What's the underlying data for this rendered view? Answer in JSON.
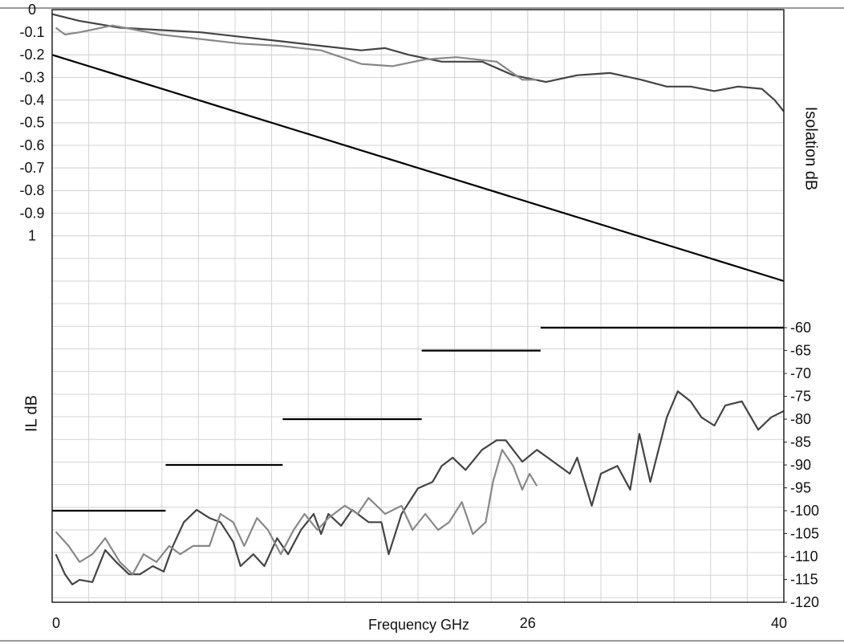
{
  "chart_data": {
    "type": "line",
    "x_label": "Frequency GHz",
    "y_label": "IL dB",
    "y2_label": "Isolation dB",
    "xlim": [
      0,
      40
    ],
    "xticks": [
      0,
      26,
      40
    ],
    "ylim": [
      -2.62,
      0
    ],
    "yticks": [
      0,
      -0.1,
      -0.2,
      -0.3,
      -0.4,
      -0.5,
      -0.6,
      -0.7,
      -0.8,
      -0.9,
      {
        "value": -1,
        "label": "1"
      }
    ],
    "y2lim": [
      -120,
      9.5
    ],
    "y2ticks": [
      -60,
      -65,
      -70,
      -75,
      -80,
      -85,
      -90,
      -95,
      -100,
      -105,
      -110,
      -115,
      -120
    ],
    "grid": true,
    "series": [
      {
        "color": "#000000",
        "x": [
          0,
          40
        ],
        "values": [
          -0.2,
          -1.2
        ]
      },
      {
        "color": "#444444",
        "x": [
          0,
          1.5,
          3.7,
          5.9,
          8.1,
          10.3,
          12.5,
          14.7,
          16.9,
          18.2,
          19.5,
          21.3,
          23.5,
          25.2,
          27,
          28.7,
          30.5,
          32.2,
          33.6,
          34.9,
          36.2,
          37.5,
          38.8,
          39.5,
          40
        ],
        "values": [
          -0.02,
          -0.05,
          -0.08,
          -0.09,
          -0.1,
          -0.12,
          -0.14,
          -0.16,
          -0.18,
          -0.17,
          -0.2,
          -0.23,
          -0.23,
          -0.29,
          -0.32,
          -0.29,
          -0.28,
          -0.31,
          -0.34,
          -0.34,
          -0.36,
          -0.34,
          -0.35,
          -0.4,
          -0.45
        ]
      },
      {
        "color": "#888888",
        "x": [
          0.2,
          0.7,
          1.5,
          3.3,
          5.9,
          8.1,
          10.3,
          12.5,
          14.7,
          16.9,
          18.6,
          20.4,
          22.1,
          24.3,
          25.7,
          26.5
        ],
        "values": [
          -0.08,
          -0.11,
          -0.1,
          -0.07,
          -0.11,
          -0.13,
          -0.15,
          -0.16,
          -0.18,
          -0.24,
          -0.25,
          -0.22,
          -0.21,
          -0.23,
          -0.31,
          -0.31
        ]
      },
      {
        "color": "#000000",
        "axis": "y2",
        "x": [
          0,
          6.2,
          6.2,
          6.2,
          12.6,
          12.6,
          12.6,
          20.2,
          20.2,
          20.2,
          26.7,
          26.7,
          26.7,
          40
        ],
        "values": [
          -100,
          -100,
          null,
          -90,
          -90,
          null,
          -80,
          -80,
          null,
          -65,
          -65,
          null,
          -60,
          -60
        ]
      },
      {
        "color": "#444444",
        "axis": "y2",
        "x": [
          0.2,
          0.7,
          1.1,
          1.5,
          2.2,
          2.9,
          3.5,
          4.2,
          4.8,
          5.5,
          6.1,
          6.6,
          7.2,
          7.9,
          8.6,
          9.2,
          9.9,
          10.3,
          11.0,
          11.6,
          12.3,
          12.9,
          13.6,
          14.3,
          14.7,
          15.1,
          15.8,
          16.4,
          17.3,
          18.0,
          18.4,
          19.1,
          20.0,
          20.8,
          21.3,
          21.9,
          22.6,
          23.5,
          24.3,
          24.8,
          25.7,
          26.5,
          27.4,
          28.3,
          28.7,
          29.5,
          30.0,
          30.9,
          31.6,
          32.1,
          32.7,
          33.6,
          34.2,
          34.9,
          35.5,
          36.2,
          36.8,
          37.7,
          38.6,
          39.3,
          40.0
        ],
        "values": [
          -109.5,
          -113.9,
          -116.1,
          -115.1,
          -115.6,
          -108.6,
          -111.2,
          -113.9,
          -113.9,
          -112.1,
          -113.3,
          -107.7,
          -102.5,
          -99.8,
          -101.6,
          -102.5,
          -106.8,
          -112.1,
          -109.5,
          -112.1,
          -106,
          -109.5,
          -104.2,
          -100.7,
          -105.1,
          -100.7,
          -103.3,
          -99.8,
          -102.5,
          -102.5,
          -109.5,
          -100.7,
          -95.1,
          -93.7,
          -90.2,
          -88.4,
          -91.1,
          -86.7,
          -84.6,
          -84.6,
          -89.3,
          -86.7,
          -89.3,
          -91.9,
          -88.4,
          -98.9,
          -91.9,
          -90.2,
          -95.4,
          -83.2,
          -93.7,
          -79.6,
          -73.9,
          -76.1,
          -79.6,
          -81.4,
          -77,
          -76.1,
          -82.3,
          -79.6,
          -78.2
        ]
      },
      {
        "color": "#888888",
        "axis": "y2",
        "x": [
          0.2,
          0.9,
          1.5,
          2.2,
          2.9,
          3.7,
          4.4,
          5.0,
          5.7,
          6.4,
          7.0,
          7.7,
          8.6,
          9.2,
          9.9,
          10.5,
          11.2,
          11.8,
          12.5,
          13.2,
          13.8,
          14.5,
          15.1,
          16.0,
          16.7,
          17.3,
          18.2,
          19.1,
          19.7,
          20.4,
          21.1,
          21.7,
          22.4,
          23.0,
          23.7,
          24.1,
          24.6,
          25.2,
          25.7,
          26.1,
          26.5
        ],
        "values": [
          -104.6,
          -107.7,
          -111.2,
          -109.5,
          -106,
          -111.2,
          -113.9,
          -109.5,
          -111.2,
          -107.7,
          -109.5,
          -107.7,
          -107.7,
          -100.7,
          -102.5,
          -107.7,
          -101.6,
          -104.2,
          -109.5,
          -104.2,
          -100.7,
          -104.2,
          -101.6,
          -98.9,
          -100.7,
          -97.2,
          -100.7,
          -98.9,
          -104.2,
          -100.7,
          -104.2,
          -102.5,
          -98.1,
          -105.1,
          -102.5,
          -93.7,
          -86.7,
          -90.2,
          -95.4,
          -91.9,
          -94.6
        ]
      }
    ]
  }
}
